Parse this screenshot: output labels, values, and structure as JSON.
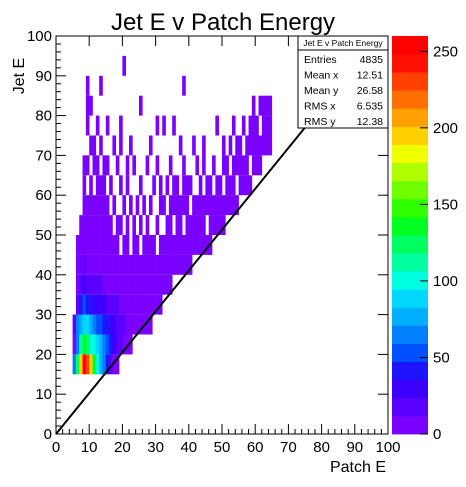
{
  "chart_data": {
    "type": "heatmap",
    "title": "Jet E v Patch Energy",
    "xlabel": "Patch E",
    "ylabel": "Jet E",
    "xlim": [
      0,
      100
    ],
    "ylim": [
      0,
      100
    ],
    "xticks": [
      "0",
      "10",
      "20",
      "30",
      "40",
      "50",
      "60",
      "70",
      "80",
      "90",
      "100"
    ],
    "yticks": [
      "0",
      "10",
      "20",
      "30",
      "40",
      "50",
      "60",
      "70",
      "80",
      "90",
      "100"
    ],
    "grid": false,
    "zlim": [
      0,
      260
    ],
    "zticks": [
      "0",
      "50",
      "100",
      "150",
      "200",
      "250"
    ],
    "palette": [
      "#7a00ff",
      "#5a00ff",
      "#3c00ff",
      "#1e14ff",
      "#0050ff",
      "#0080ff",
      "#00b0ff",
      "#00d8ff",
      "#00ffe0",
      "#00ffa0",
      "#00ff60",
      "#00ff20",
      "#30ff00",
      "#70ff00",
      "#b0ff00",
      "#f0ff00",
      "#ffd000",
      "#ffa000",
      "#ff7000",
      "#ff4000",
      "#ff1000",
      "#ff0000"
    ],
    "stats_box": {
      "title": "Jet E v Patch Energy",
      "rows": [
        {
          "label": "Entries",
          "value": "4835"
        },
        {
          "label": "Mean x",
          "value": "12.51"
        },
        {
          "label": "Mean y",
          "value": "26.58"
        },
        {
          "label": "RMS x",
          "value": "6.535"
        },
        {
          "label": "RMS y",
          "value": "12.38"
        }
      ]
    },
    "reference_line": {
      "x": [
        0,
        75
      ],
      "y": [
        0,
        77
      ]
    },
    "cells": [
      [
        5,
        15,
        60
      ],
      [
        5,
        20,
        10
      ],
      [
        5,
        25,
        15
      ],
      [
        6,
        15,
        120
      ],
      [
        6,
        20,
        70
      ],
      [
        6,
        25,
        60
      ],
      [
        6,
        30,
        20
      ],
      [
        6,
        35,
        10
      ],
      [
        6,
        40,
        5
      ],
      [
        6,
        45,
        5
      ],
      [
        7,
        15,
        200
      ],
      [
        7,
        20,
        110
      ],
      [
        7,
        25,
        75
      ],
      [
        7,
        30,
        40
      ],
      [
        7,
        35,
        15
      ],
      [
        7,
        40,
        10
      ],
      [
        7,
        45,
        5
      ],
      [
        7,
        50,
        5
      ],
      [
        8,
        15,
        250
      ],
      [
        8,
        20,
        130
      ],
      [
        8,
        25,
        90
      ],
      [
        8,
        30,
        50
      ],
      [
        8,
        35,
        25
      ],
      [
        8,
        40,
        12
      ],
      [
        8,
        45,
        5
      ],
      [
        8,
        50,
        5
      ],
      [
        8,
        55,
        5
      ],
      [
        8,
        60,
        5
      ],
      [
        8,
        65,
        5
      ],
      [
        9,
        15,
        230
      ],
      [
        9,
        20,
        120
      ],
      [
        9,
        25,
        85
      ],
      [
        9,
        30,
        45
      ],
      [
        9,
        35,
        20
      ],
      [
        9,
        40,
        10
      ],
      [
        9,
        45,
        5
      ],
      [
        9,
        50,
        5
      ],
      [
        9,
        55,
        5
      ],
      [
        9,
        65,
        5
      ],
      [
        9,
        75,
        5
      ],
      [
        9,
        80,
        5
      ],
      [
        9,
        85,
        5
      ],
      [
        10,
        15,
        200
      ],
      [
        10,
        20,
        100
      ],
      [
        10,
        25,
        75
      ],
      [
        10,
        30,
        40
      ],
      [
        10,
        35,
        18
      ],
      [
        10,
        40,
        8
      ],
      [
        10,
        45,
        5
      ],
      [
        10,
        50,
        5
      ],
      [
        10,
        55,
        5
      ],
      [
        10,
        60,
        5
      ],
      [
        10,
        70,
        5
      ],
      [
        10,
        80,
        5
      ],
      [
        11,
        15,
        140
      ],
      [
        11,
        20,
        95
      ],
      [
        11,
        25,
        60
      ],
      [
        11,
        30,
        35
      ],
      [
        11,
        35,
        15
      ],
      [
        11,
        40,
        8
      ],
      [
        11,
        45,
        5
      ],
      [
        11,
        50,
        5
      ],
      [
        11,
        55,
        5
      ],
      [
        11,
        65,
        5
      ],
      [
        11,
        70,
        5
      ],
      [
        12,
        15,
        100
      ],
      [
        12,
        20,
        85
      ],
      [
        12,
        25,
        55
      ],
      [
        12,
        30,
        30
      ],
      [
        12,
        35,
        12
      ],
      [
        12,
        40,
        8
      ],
      [
        12,
        45,
        5
      ],
      [
        12,
        50,
        5
      ],
      [
        12,
        55,
        5
      ],
      [
        12,
        60,
        5
      ],
      [
        12,
        65,
        5
      ],
      [
        12,
        75,
        5
      ],
      [
        13,
        15,
        80
      ],
      [
        13,
        20,
        75
      ],
      [
        13,
        25,
        50
      ],
      [
        13,
        30,
        28
      ],
      [
        13,
        35,
        12
      ],
      [
        13,
        40,
        6
      ],
      [
        13,
        45,
        5
      ],
      [
        13,
        50,
        5
      ],
      [
        13,
        55,
        5
      ],
      [
        13,
        60,
        5
      ],
      [
        13,
        70,
        5
      ],
      [
        13,
        85,
        5
      ],
      [
        14,
        15,
        60
      ],
      [
        14,
        20,
        65
      ],
      [
        14,
        25,
        45
      ],
      [
        14,
        30,
        25
      ],
      [
        14,
        35,
        10
      ],
      [
        14,
        40,
        6
      ],
      [
        14,
        45,
        5
      ],
      [
        14,
        50,
        5
      ],
      [
        14,
        55,
        5
      ],
      [
        14,
        60,
        5
      ],
      [
        14,
        65,
        5
      ],
      [
        15,
        15,
        40
      ],
      [
        15,
        20,
        55
      ],
      [
        15,
        25,
        40
      ],
      [
        15,
        30,
        20
      ],
      [
        15,
        35,
        10
      ],
      [
        15,
        40,
        5
      ],
      [
        15,
        45,
        5
      ],
      [
        15,
        50,
        5
      ],
      [
        15,
        55,
        5
      ],
      [
        15,
        65,
        5
      ],
      [
        15,
        75,
        5
      ],
      [
        16,
        15,
        20
      ],
      [
        16,
        20,
        45
      ],
      [
        16,
        25,
        35
      ],
      [
        16,
        30,
        18
      ],
      [
        16,
        35,
        8
      ],
      [
        16,
        40,
        5
      ],
      [
        16,
        45,
        5
      ],
      [
        16,
        50,
        5
      ],
      [
        16,
        60,
        5
      ],
      [
        17,
        15,
        10
      ],
      [
        17,
        20,
        30
      ],
      [
        17,
        25,
        28
      ],
      [
        17,
        30,
        15
      ],
      [
        17,
        35,
        8
      ],
      [
        17,
        40,
        5
      ],
      [
        17,
        45,
        5
      ],
      [
        17,
        55,
        5
      ],
      [
        17,
        70,
        5
      ],
      [
        18,
        15,
        5
      ],
      [
        18,
        20,
        20
      ],
      [
        18,
        25,
        22
      ],
      [
        18,
        30,
        12
      ],
      [
        18,
        35,
        6
      ],
      [
        18,
        40,
        5
      ],
      [
        18,
        45,
        5
      ],
      [
        18,
        50,
        5
      ],
      [
        18,
        65,
        5
      ],
      [
        19,
        20,
        12
      ],
      [
        19,
        25,
        18
      ],
      [
        19,
        30,
        10
      ],
      [
        19,
        35,
        5
      ],
      [
        19,
        40,
        5
      ],
      [
        19,
        50,
        5
      ],
      [
        19,
        60,
        5
      ],
      [
        19,
        70,
        5
      ],
      [
        19,
        75,
        5
      ],
      [
        20,
        20,
        8
      ],
      [
        20,
        25,
        14
      ],
      [
        20,
        30,
        8
      ],
      [
        20,
        35,
        5
      ],
      [
        20,
        40,
        5
      ],
      [
        20,
        45,
        5
      ],
      [
        20,
        55,
        5
      ],
      [
        20,
        90,
        5
      ],
      [
        21,
        20,
        5
      ],
      [
        21,
        25,
        10
      ],
      [
        21,
        30,
        6
      ],
      [
        21,
        35,
        5
      ],
      [
        21,
        40,
        5
      ],
      [
        21,
        45,
        5
      ],
      [
        21,
        50,
        5
      ],
      [
        21,
        60,
        5
      ],
      [
        21,
        65,
        5
      ],
      [
        22,
        20,
        5
      ],
      [
        22,
        25,
        8
      ],
      [
        22,
        30,
        5
      ],
      [
        22,
        35,
        5
      ],
      [
        22,
        40,
        5
      ],
      [
        22,
        55,
        5
      ],
      [
        22,
        70,
        5
      ],
      [
        23,
        25,
        6
      ],
      [
        23,
        30,
        5
      ],
      [
        23,
        35,
        5
      ],
      [
        23,
        40,
        5
      ],
      [
        23,
        45,
        5
      ],
      [
        23,
        50,
        5
      ],
      [
        23,
        65,
        5
      ],
      [
        24,
        25,
        5
      ],
      [
        24,
        30,
        5
      ],
      [
        24,
        35,
        5
      ],
      [
        24,
        40,
        5
      ],
      [
        24,
        45,
        5
      ],
      [
        24,
        55,
        5
      ],
      [
        25,
        25,
        5
      ],
      [
        25,
        30,
        5
      ],
      [
        25,
        35,
        5
      ],
      [
        25,
        40,
        5
      ],
      [
        25,
        50,
        5
      ],
      [
        25,
        60,
        5
      ],
      [
        25,
        80,
        5
      ],
      [
        26,
        25,
        5
      ],
      [
        26,
        30,
        5
      ],
      [
        26,
        35,
        5
      ],
      [
        26,
        40,
        5
      ],
      [
        26,
        45,
        5
      ],
      [
        26,
        55,
        5
      ],
      [
        27,
        25,
        5
      ],
      [
        27,
        30,
        5
      ],
      [
        27,
        35,
        5
      ],
      [
        27,
        40,
        5
      ],
      [
        27,
        45,
        5
      ],
      [
        27,
        50,
        5
      ],
      [
        27,
        65,
        5
      ],
      [
        28,
        25,
        5
      ],
      [
        28,
        30,
        5
      ],
      [
        28,
        35,
        5
      ],
      [
        28,
        40,
        5
      ],
      [
        28,
        45,
        5
      ],
      [
        28,
        55,
        5
      ],
      [
        28,
        70,
        5
      ],
      [
        29,
        30,
        5
      ],
      [
        29,
        35,
        5
      ],
      [
        29,
        40,
        5
      ],
      [
        29,
        45,
        5
      ],
      [
        29,
        60,
        5
      ],
      [
        30,
        30,
        5
      ],
      [
        30,
        35,
        5
      ],
      [
        30,
        40,
        5
      ],
      [
        30,
        50,
        5
      ],
      [
        30,
        65,
        5
      ],
      [
        30,
        75,
        5
      ],
      [
        31,
        30,
        5
      ],
      [
        31,
        35,
        5
      ],
      [
        31,
        40,
        5
      ],
      [
        31,
        45,
        5
      ],
      [
        31,
        55,
        5
      ],
      [
        31,
        60,
        5
      ],
      [
        32,
        35,
        5
      ],
      [
        32,
        40,
        5
      ],
      [
        32,
        45,
        5
      ],
      [
        32,
        55,
        5
      ],
      [
        32,
        75,
        5
      ],
      [
        33,
        35,
        5
      ],
      [
        33,
        40,
        5
      ],
      [
        33,
        45,
        5
      ],
      [
        33,
        50,
        5
      ],
      [
        33,
        60,
        5
      ],
      [
        34,
        35,
        5
      ],
      [
        34,
        40,
        5
      ],
      [
        34,
        45,
        5
      ],
      [
        34,
        50,
        5
      ],
      [
        34,
        55,
        5
      ],
      [
        34,
        65,
        5
      ],
      [
        35,
        40,
        5
      ],
      [
        35,
        45,
        5
      ],
      [
        35,
        55,
        5
      ],
      [
        35,
        60,
        5
      ],
      [
        35,
        75,
        5
      ],
      [
        36,
        40,
        5
      ],
      [
        36,
        45,
        5
      ],
      [
        36,
        50,
        5
      ],
      [
        36,
        55,
        5
      ],
      [
        36,
        60,
        5
      ],
      [
        37,
        40,
        5
      ],
      [
        37,
        45,
        5
      ],
      [
        37,
        50,
        5
      ],
      [
        37,
        55,
        5
      ],
      [
        37,
        70,
        5
      ],
      [
        38,
        40,
        5
      ],
      [
        38,
        45,
        5
      ],
      [
        38,
        55,
        5
      ],
      [
        38,
        60,
        5
      ],
      [
        38,
        65,
        5
      ],
      [
        38,
        85,
        5
      ],
      [
        39,
        40,
        5
      ],
      [
        39,
        45,
        5
      ],
      [
        39,
        50,
        5
      ],
      [
        39,
        55,
        5
      ],
      [
        39,
        60,
        5
      ],
      [
        40,
        40,
        5
      ],
      [
        40,
        45,
        5
      ],
      [
        40,
        50,
        5
      ],
      [
        40,
        60,
        5
      ],
      [
        41,
        45,
        5
      ],
      [
        41,
        50,
        5
      ],
      [
        41,
        55,
        5
      ],
      [
        41,
        70,
        5
      ],
      [
        42,
        45,
        5
      ],
      [
        42,
        50,
        5
      ],
      [
        42,
        55,
        5
      ],
      [
        42,
        65,
        5
      ],
      [
        43,
        45,
        5
      ],
      [
        43,
        50,
        5
      ],
      [
        43,
        55,
        5
      ],
      [
        43,
        60,
        5
      ],
      [
        44,
        45,
        5
      ],
      [
        44,
        50,
        5
      ],
      [
        44,
        55,
        5
      ],
      [
        44,
        65,
        5
      ],
      [
        44,
        70,
        5
      ],
      [
        45,
        45,
        5
      ],
      [
        45,
        55,
        5
      ],
      [
        45,
        60,
        5
      ],
      [
        46,
        45,
        5
      ],
      [
        46,
        50,
        5
      ],
      [
        46,
        55,
        5
      ],
      [
        46,
        60,
        5
      ],
      [
        47,
        50,
        5
      ],
      [
        47,
        55,
        5
      ],
      [
        47,
        65,
        5
      ],
      [
        48,
        50,
        5
      ],
      [
        48,
        55,
        5
      ],
      [
        48,
        60,
        5
      ],
      [
        48,
        75,
        5
      ],
      [
        49,
        50,
        5
      ],
      [
        49,
        55,
        5
      ],
      [
        49,
        60,
        5
      ],
      [
        50,
        50,
        5
      ],
      [
        50,
        55,
        5
      ],
      [
        50,
        65,
        5
      ],
      [
        50,
        70,
        5
      ],
      [
        51,
        55,
        5
      ],
      [
        51,
        60,
        5
      ],
      [
        51,
        65,
        5
      ],
      [
        52,
        55,
        5
      ],
      [
        52,
        60,
        5
      ],
      [
        52,
        70,
        5
      ],
      [
        53,
        55,
        5
      ],
      [
        53,
        60,
        5
      ],
      [
        53,
        65,
        5
      ],
      [
        53,
        75,
        5
      ],
      [
        54,
        55,
        5
      ],
      [
        54,
        65,
        5
      ],
      [
        54,
        70,
        5
      ],
      [
        55,
        60,
        5
      ],
      [
        55,
        65,
        5
      ],
      [
        55,
        70,
        5
      ],
      [
        56,
        60,
        5
      ],
      [
        56,
        65,
        5
      ],
      [
        56,
        75,
        5
      ],
      [
        57,
        60,
        5
      ],
      [
        57,
        65,
        5
      ],
      [
        57,
        70,
        5
      ],
      [
        58,
        60,
        5
      ],
      [
        58,
        70,
        5
      ],
      [
        58,
        75,
        5
      ],
      [
        59,
        65,
        5
      ],
      [
        59,
        70,
        5
      ],
      [
        59,
        75,
        5
      ],
      [
        59,
        80,
        5
      ],
      [
        60,
        65,
        5
      ],
      [
        60,
        70,
        5
      ],
      [
        60,
        75,
        5
      ],
      [
        61,
        65,
        5
      ],
      [
        61,
        70,
        5
      ],
      [
        61,
        80,
        5
      ],
      [
        62,
        70,
        5
      ],
      [
        62,
        75,
        5
      ],
      [
        62,
        80,
        5
      ],
      [
        63,
        70,
        5
      ],
      [
        63,
        75,
        5
      ],
      [
        63,
        80,
        5
      ],
      [
        64,
        70,
        5
      ],
      [
        64,
        75,
        5
      ],
      [
        64,
        80,
        5
      ]
    ]
  }
}
